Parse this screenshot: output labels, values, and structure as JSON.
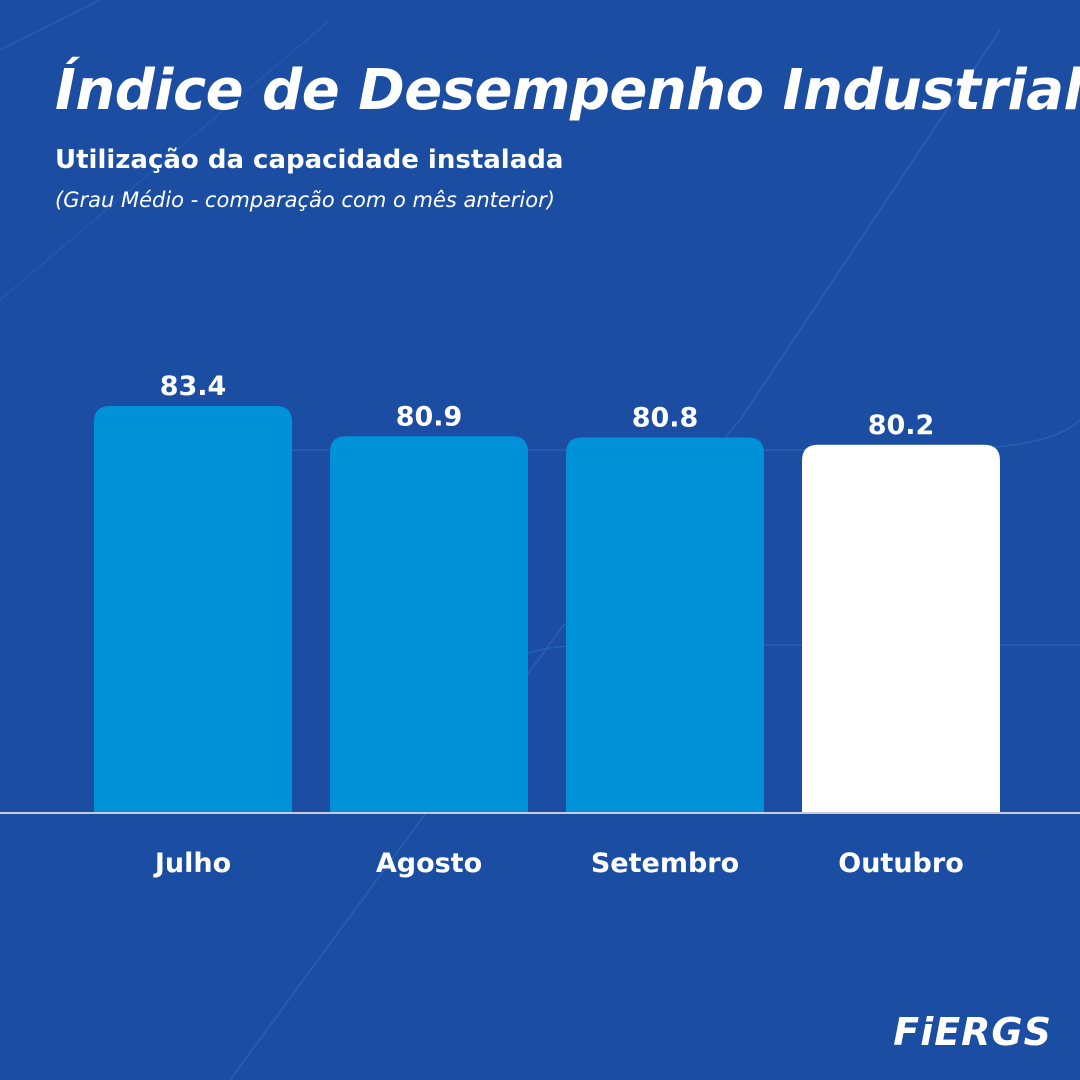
{
  "title": "Índice de Desempenho Industrial",
  "subtitle": "Utilização da capacidade instalada",
  "note": "(Grau Médio - comparação com o mês anterior)",
  "logo": "FiERGS",
  "colors": {
    "background": "#1b4ea3",
    "bar": "#0092d8",
    "highlight_bar": "#ffffff",
    "baseline": "#c8ccd6"
  },
  "chart_data": {
    "type": "bar",
    "categories": [
      "Julho",
      "Agosto",
      "Setembro",
      "Outubro"
    ],
    "values": [
      83.4,
      80.9,
      80.8,
      80.2
    ],
    "value_labels": [
      "83.4",
      "80.9",
      "80.8",
      "80.2"
    ],
    "highlight": [
      "Outubro"
    ],
    "title": "Índice de Desempenho Industrial",
    "subtitle": "Utilização da capacidade instalada",
    "xlabel": "",
    "ylabel": "",
    "ylim": [
      0,
      83.4
    ],
    "grid": false,
    "legend": "none"
  }
}
